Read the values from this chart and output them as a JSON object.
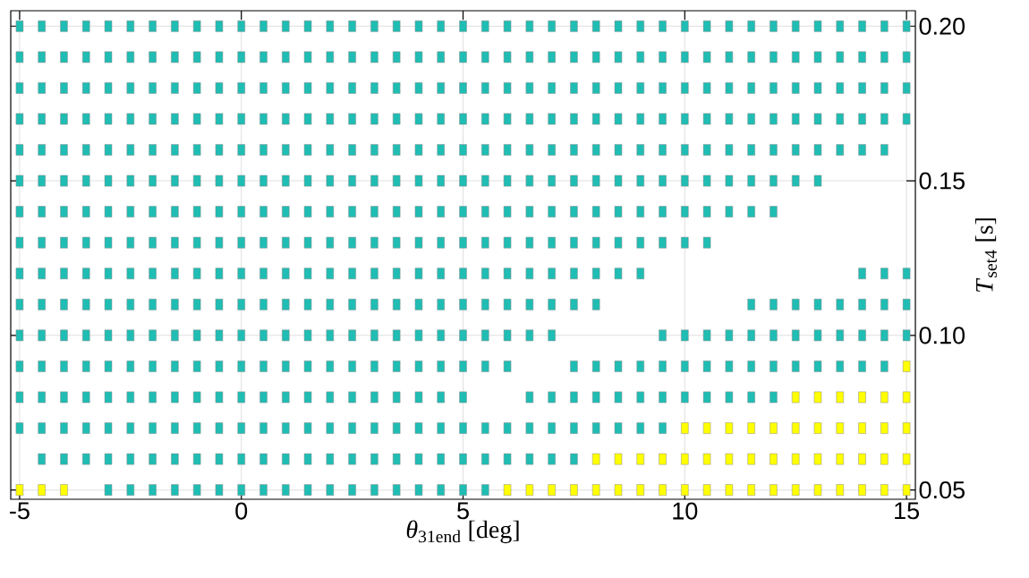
{
  "chart_data": {
    "type": "scatter",
    "xlabel": "*θ*$_{31end}$ [deg]",
    "ylabel": "*T*$_{set4}$ [s]",
    "xlim": [
      -5.2,
      15.2
    ],
    "ylim": [
      0.047,
      0.205
    ],
    "xticks": [
      -5,
      0,
      5,
      10,
      15
    ],
    "yticks": [
      0.05,
      {
        "value": 0.1,
        "label": "0.10"
      },
      0.15,
      {
        "value": 0.2,
        "label": "0.20"
      }
    ],
    "grid": true,
    "marker": "square",
    "series": [
      {
        "color": "#1fbdb3",
        "x": [
          -5,
          -4.5,
          -4,
          -3.5,
          -3,
          -2.5,
          -2,
          -1.5,
          -1,
          -0.5,
          0,
          0.5,
          1,
          1.5,
          2,
          2.5,
          3,
          3.5,
          4,
          4.5,
          5,
          5.5,
          6,
          6.5,
          7,
          7.5,
          8,
          8.5,
          9,
          9.5,
          10,
          10.5,
          11,
          11.5,
          12,
          12.5,
          13,
          13.5,
          14,
          14.5,
          15
        ],
        "values": [
          0.2,
          0.2,
          0.2,
          0.2,
          0.2,
          0.2,
          0.2,
          0.2,
          0.2,
          0.2,
          0.2,
          0.2,
          0.2,
          0.2,
          0.2,
          0.2,
          0.2,
          0.2,
          0.2,
          0.2,
          0.2,
          0.2,
          0.2,
          0.2,
          0.2,
          0.2,
          0.2,
          0.2,
          0.2,
          0.2,
          0.2,
          0.2,
          0.2,
          0.2,
          0.2,
          0.2,
          0.2,
          0.2,
          0.2,
          0.2,
          0.2
        ]
      },
      {
        "color": "#1fbdb3",
        "x": [
          -5,
          -4.5,
          -4,
          -3.5,
          -3,
          -2.5,
          -2,
          -1.5,
          -1,
          -0.5,
          0,
          0.5,
          1,
          1.5,
          2,
          2.5,
          3,
          3.5,
          4,
          4.5,
          5,
          5.5,
          6,
          6.5,
          7,
          7.5,
          8,
          8.5,
          9,
          9.5,
          10,
          10.5,
          11,
          11.5,
          12,
          12.5,
          13,
          13.5,
          14,
          14.5,
          15
        ],
        "values": [
          0.19,
          0.19,
          0.19,
          0.19,
          0.19,
          0.19,
          0.19,
          0.19,
          0.19,
          0.19,
          0.19,
          0.19,
          0.19,
          0.19,
          0.19,
          0.19,
          0.19,
          0.19,
          0.19,
          0.19,
          0.19,
          0.19,
          0.19,
          0.19,
          0.19,
          0.19,
          0.19,
          0.19,
          0.19,
          0.19,
          0.19,
          0.19,
          0.19,
          0.19,
          0.19,
          0.19,
          0.19,
          0.19,
          0.19,
          0.19,
          0.19
        ]
      },
      {
        "color": "#1fbdb3",
        "x": [
          -5,
          -4.5,
          -4,
          -3.5,
          -3,
          -2.5,
          -2,
          -1.5,
          -1,
          -0.5,
          0,
          0.5,
          1,
          1.5,
          2,
          2.5,
          3,
          3.5,
          4,
          4.5,
          5,
          5.5,
          6,
          6.5,
          7,
          7.5,
          8,
          8.5,
          9,
          9.5,
          10,
          10.5,
          11,
          11.5,
          12,
          12.5,
          13,
          13.5,
          14,
          14.5,
          15
        ],
        "values": [
          0.18,
          0.18,
          0.18,
          0.18,
          0.18,
          0.18,
          0.18,
          0.18,
          0.18,
          0.18,
          0.18,
          0.18,
          0.18,
          0.18,
          0.18,
          0.18,
          0.18,
          0.18,
          0.18,
          0.18,
          0.18,
          0.18,
          0.18,
          0.18,
          0.18,
          0.18,
          0.18,
          0.18,
          0.18,
          0.18,
          0.18,
          0.18,
          0.18,
          0.18,
          0.18,
          0.18,
          0.18,
          0.18,
          0.18,
          0.18,
          0.18
        ]
      },
      {
        "color": "#1fbdb3",
        "x": [
          -5,
          -4.5,
          -4,
          -3.5,
          -3,
          -2.5,
          -2,
          -1.5,
          -1,
          -0.5,
          0,
          0.5,
          1,
          1.5,
          2,
          2.5,
          3,
          3.5,
          4,
          4.5,
          5,
          5.5,
          6,
          6.5,
          7,
          7.5,
          8,
          8.5,
          9,
          9.5,
          10,
          10.5,
          11,
          11.5,
          12,
          12.5,
          13,
          13.5,
          14,
          14.5,
          15
        ],
        "values": [
          0.17,
          0.17,
          0.17,
          0.17,
          0.17,
          0.17,
          0.17,
          0.17,
          0.17,
          0.17,
          0.17,
          0.17,
          0.17,
          0.17,
          0.17,
          0.17,
          0.17,
          0.17,
          0.17,
          0.17,
          0.17,
          0.17,
          0.17,
          0.17,
          0.17,
          0.17,
          0.17,
          0.17,
          0.17,
          0.17,
          0.17,
          0.17,
          0.17,
          0.17,
          0.17,
          0.17,
          0.17,
          0.17,
          0.17,
          0.17,
          0.17
        ]
      },
      {
        "color": "#1fbdb3",
        "x": [
          -5,
          -4.5,
          -4,
          -3.5,
          -3,
          -2.5,
          -2,
          -1.5,
          -1,
          -0.5,
          0,
          0.5,
          1,
          1.5,
          2,
          2.5,
          3,
          3.5,
          4,
          4.5,
          5,
          5.5,
          6,
          6.5,
          7,
          7.5,
          8,
          8.5,
          9,
          9.5,
          10,
          10.5,
          11,
          11.5,
          12,
          12.5,
          13,
          13.5,
          14,
          14.5
        ],
        "values": [
          0.16,
          0.16,
          0.16,
          0.16,
          0.16,
          0.16,
          0.16,
          0.16,
          0.16,
          0.16,
          0.16,
          0.16,
          0.16,
          0.16,
          0.16,
          0.16,
          0.16,
          0.16,
          0.16,
          0.16,
          0.16,
          0.16,
          0.16,
          0.16,
          0.16,
          0.16,
          0.16,
          0.16,
          0.16,
          0.16,
          0.16,
          0.16,
          0.16,
          0.16,
          0.16,
          0.16,
          0.16,
          0.16,
          0.16,
          0.16
        ]
      },
      {
        "color": "#1fbdb3",
        "x": [
          -5,
          -4.5,
          -4,
          -3.5,
          -3,
          -2.5,
          -2,
          -1.5,
          -1,
          -0.5,
          0,
          0.5,
          1,
          1.5,
          2,
          2.5,
          3,
          3.5,
          4,
          4.5,
          5,
          5.5,
          6,
          6.5,
          7,
          7.5,
          8,
          8.5,
          9,
          9.5,
          10,
          10.5,
          11,
          11.5,
          12,
          12.5,
          13
        ],
        "values": [
          0.15,
          0.15,
          0.15,
          0.15,
          0.15,
          0.15,
          0.15,
          0.15,
          0.15,
          0.15,
          0.15,
          0.15,
          0.15,
          0.15,
          0.15,
          0.15,
          0.15,
          0.15,
          0.15,
          0.15,
          0.15,
          0.15,
          0.15,
          0.15,
          0.15,
          0.15,
          0.15,
          0.15,
          0.15,
          0.15,
          0.15,
          0.15,
          0.15,
          0.15,
          0.15,
          0.15,
          0.15
        ]
      },
      {
        "color": "#1fbdb3",
        "x": [
          -5,
          -4.5,
          -4,
          -3.5,
          -3,
          -2.5,
          -2,
          -1.5,
          -1,
          -0.5,
          0,
          0.5,
          1,
          1.5,
          2,
          2.5,
          3,
          3.5,
          4,
          4.5,
          5,
          5.5,
          6,
          6.5,
          7,
          7.5,
          8,
          8.5,
          9,
          9.5,
          10,
          10.5,
          11,
          11.5,
          12
        ],
        "values": [
          0.14,
          0.14,
          0.14,
          0.14,
          0.14,
          0.14,
          0.14,
          0.14,
          0.14,
          0.14,
          0.14,
          0.14,
          0.14,
          0.14,
          0.14,
          0.14,
          0.14,
          0.14,
          0.14,
          0.14,
          0.14,
          0.14,
          0.14,
          0.14,
          0.14,
          0.14,
          0.14,
          0.14,
          0.14,
          0.14,
          0.14,
          0.14,
          0.14,
          0.14,
          0.14
        ]
      },
      {
        "color": "#1fbdb3",
        "x": [
          -5,
          -4.5,
          -4,
          -3.5,
          -3,
          -2.5,
          -2,
          -1.5,
          -1,
          -0.5,
          0,
          0.5,
          1,
          1.5,
          2,
          2.5,
          3,
          3.5,
          4,
          4.5,
          5,
          5.5,
          6,
          6.5,
          7,
          7.5,
          8,
          8.5,
          9,
          9.5,
          10,
          10.5
        ],
        "values": [
          0.13,
          0.13,
          0.13,
          0.13,
          0.13,
          0.13,
          0.13,
          0.13,
          0.13,
          0.13,
          0.13,
          0.13,
          0.13,
          0.13,
          0.13,
          0.13,
          0.13,
          0.13,
          0.13,
          0.13,
          0.13,
          0.13,
          0.13,
          0.13,
          0.13,
          0.13,
          0.13,
          0.13,
          0.13,
          0.13,
          0.13,
          0.13
        ]
      },
      {
        "color": "#1fbdb3",
        "x": [
          -5,
          -4.5,
          -4,
          -3.5,
          -3,
          -2.5,
          -2,
          -1.5,
          -1,
          -0.5,
          0,
          0.5,
          1,
          1.5,
          2,
          2.5,
          3,
          3.5,
          4,
          4.5,
          5,
          5.5,
          6,
          6.5,
          7,
          7.5,
          8,
          8.5,
          9,
          14,
          14.5,
          15
        ],
        "values": [
          0.12,
          0.12,
          0.12,
          0.12,
          0.12,
          0.12,
          0.12,
          0.12,
          0.12,
          0.12,
          0.12,
          0.12,
          0.12,
          0.12,
          0.12,
          0.12,
          0.12,
          0.12,
          0.12,
          0.12,
          0.12,
          0.12,
          0.12,
          0.12,
          0.12,
          0.12,
          0.12,
          0.12,
          0.12,
          0.12,
          0.12,
          0.12
        ]
      },
      {
        "color": "#1fbdb3",
        "x": [
          -5,
          -4.5,
          -4,
          -3.5,
          -3,
          -2.5,
          -2,
          -1.5,
          -1,
          -0.5,
          0,
          0.5,
          1,
          1.5,
          2,
          2.5,
          3,
          3.5,
          4,
          4.5,
          5,
          5.5,
          6,
          6.5,
          7,
          7.5,
          8,
          11.5,
          12,
          12.5,
          13,
          13.5,
          14,
          14.5,
          15
        ],
        "values": [
          0.11,
          0.11,
          0.11,
          0.11,
          0.11,
          0.11,
          0.11,
          0.11,
          0.11,
          0.11,
          0.11,
          0.11,
          0.11,
          0.11,
          0.11,
          0.11,
          0.11,
          0.11,
          0.11,
          0.11,
          0.11,
          0.11,
          0.11,
          0.11,
          0.11,
          0.11,
          0.11,
          0.11,
          0.11,
          0.11,
          0.11,
          0.11,
          0.11,
          0.11,
          0.11
        ]
      },
      {
        "color": "#1fbdb3",
        "x": [
          -5,
          -4.5,
          -4,
          -3.5,
          -3,
          -2.5,
          -2,
          -1.5,
          -1,
          -0.5,
          0,
          0.5,
          1,
          1.5,
          2,
          2.5,
          3,
          3.5,
          4,
          4.5,
          5,
          5.5,
          6,
          6.5,
          7,
          9.5,
          10,
          10.5,
          11,
          11.5,
          12,
          12.5,
          13,
          13.5,
          14,
          14.5,
          15
        ],
        "values": [
          0.1,
          0.1,
          0.1,
          0.1,
          0.1,
          0.1,
          0.1,
          0.1,
          0.1,
          0.1,
          0.1,
          0.1,
          0.1,
          0.1,
          0.1,
          0.1,
          0.1,
          0.1,
          0.1,
          0.1,
          0.1,
          0.1,
          0.1,
          0.1,
          0.1,
          0.1,
          0.1,
          0.1,
          0.1,
          0.1,
          0.1,
          0.1,
          0.1,
          0.1,
          0.1,
          0.1,
          0.1
        ]
      },
      {
        "color": "#1fbdb3",
        "x": [
          -5,
          -4.5,
          -4,
          -3.5,
          -3,
          -2.5,
          -2,
          -1.5,
          -1,
          -0.5,
          0,
          0.5,
          1,
          1.5,
          2,
          2.5,
          3,
          3.5,
          4,
          4.5,
          5,
          5.5,
          6,
          7.5,
          8,
          8.5,
          9,
          9.5,
          10,
          10.5,
          11,
          11.5,
          12,
          12.5,
          13,
          13.5,
          14,
          14.5
        ],
        "values": [
          0.09,
          0.09,
          0.09,
          0.09,
          0.09,
          0.09,
          0.09,
          0.09,
          0.09,
          0.09,
          0.09,
          0.09,
          0.09,
          0.09,
          0.09,
          0.09,
          0.09,
          0.09,
          0.09,
          0.09,
          0.09,
          0.09,
          0.09,
          0.09,
          0.09,
          0.09,
          0.09,
          0.09,
          0.09,
          0.09,
          0.09,
          0.09,
          0.09,
          0.09,
          0.09,
          0.09,
          0.09,
          0.09
        ]
      },
      {
        "color": "#1fbdb3",
        "x": [
          -5,
          -4.5,
          -4,
          -3.5,
          -3,
          -2.5,
          -2,
          -1.5,
          -1,
          -0.5,
          0,
          0.5,
          1,
          1.5,
          2,
          2.5,
          3,
          3.5,
          4,
          4.5,
          5,
          6.5,
          7,
          7.5,
          8,
          8.5,
          9,
          9.5,
          10,
          10.5,
          11,
          11.5,
          12
        ],
        "values": [
          0.08,
          0.08,
          0.08,
          0.08,
          0.08,
          0.08,
          0.08,
          0.08,
          0.08,
          0.08,
          0.08,
          0.08,
          0.08,
          0.08,
          0.08,
          0.08,
          0.08,
          0.08,
          0.08,
          0.08,
          0.08,
          0.08,
          0.08,
          0.08,
          0.08,
          0.08,
          0.08,
          0.08,
          0.08,
          0.08,
          0.08,
          0.08,
          0.08
        ]
      },
      {
        "color": "#1fbdb3",
        "x": [
          -5,
          -4.5,
          -4,
          -3.5,
          -3,
          -2.5,
          -2,
          -1.5,
          -1,
          -0.5,
          0,
          0.5,
          1,
          1.5,
          2,
          2.5,
          3,
          3.5,
          4,
          4.5,
          5,
          5.5,
          6,
          6.5,
          7,
          7.5,
          8,
          8.5,
          9,
          9.5
        ],
        "values": [
          0.07,
          0.07,
          0.07,
          0.07,
          0.07,
          0.07,
          0.07,
          0.07,
          0.07,
          0.07,
          0.07,
          0.07,
          0.07,
          0.07,
          0.07,
          0.07,
          0.07,
          0.07,
          0.07,
          0.07,
          0.07,
          0.07,
          0.07,
          0.07,
          0.07,
          0.07,
          0.07,
          0.07,
          0.07,
          0.07
        ]
      },
      {
        "color": "#1fbdb3",
        "x": [
          -4.5,
          -4,
          -3.5,
          -3,
          -2.5,
          -2,
          -1.5,
          -1,
          -0.5,
          0,
          0.5,
          1,
          1.5,
          2,
          2.5,
          3,
          3.5,
          4,
          4.5,
          5,
          5.5,
          6,
          6.5,
          7,
          7.5
        ],
        "values": [
          0.06,
          0.06,
          0.06,
          0.06,
          0.06,
          0.06,
          0.06,
          0.06,
          0.06,
          0.06,
          0.06,
          0.06,
          0.06,
          0.06,
          0.06,
          0.06,
          0.06,
          0.06,
          0.06,
          0.06,
          0.06,
          0.06,
          0.06,
          0.06,
          0.06
        ]
      },
      {
        "color": "#1fbdb3",
        "x": [
          -3,
          -2.5,
          -2,
          -1.5,
          -1,
          -0.5,
          0,
          0.5,
          1,
          1.5,
          2,
          2.5,
          3,
          3.5,
          4,
          4.5,
          5,
          5.5
        ],
        "values": [
          0.05,
          0.05,
          0.05,
          0.05,
          0.05,
          0.05,
          0.05,
          0.05,
          0.05,
          0.05,
          0.05,
          0.05,
          0.05,
          0.05,
          0.05,
          0.05,
          0.05,
          0.05
        ]
      },
      {
        "color": "#ffff00",
        "x": [
          15
        ],
        "values": [
          0.09
        ]
      },
      {
        "color": "#ffff00",
        "x": [
          12.5,
          13,
          13.5,
          14,
          14.5,
          15
        ],
        "values": [
          0.08,
          0.08,
          0.08,
          0.08,
          0.08,
          0.08
        ]
      },
      {
        "color": "#ffff00",
        "x": [
          10,
          10.5,
          11,
          11.5,
          12,
          12.5,
          13,
          13.5,
          14,
          14.5,
          15
        ],
        "values": [
          0.07,
          0.07,
          0.07,
          0.07,
          0.07,
          0.07,
          0.07,
          0.07,
          0.07,
          0.07,
          0.07
        ]
      },
      {
        "color": "#ffff00",
        "x": [
          8,
          8.5,
          9,
          9.5,
          10,
          10.5,
          11,
          11.5,
          12,
          12.5,
          13,
          13.5,
          14,
          14.5,
          15
        ],
        "values": [
          0.06,
          0.06,
          0.06,
          0.06,
          0.06,
          0.06,
          0.06,
          0.06,
          0.06,
          0.06,
          0.06,
          0.06,
          0.06,
          0.06,
          0.06
        ]
      },
      {
        "color": "#ffff00",
        "x": [
          -5,
          -4.5,
          -4,
          6,
          6.5,
          7,
          7.5,
          8,
          8.5,
          9,
          9.5,
          10,
          10.5,
          11,
          11.5,
          12,
          12.5,
          13,
          13.5,
          14,
          14.5,
          15
        ],
        "values": [
          0.05,
          0.05,
          0.05,
          0.05,
          0.05,
          0.05,
          0.05,
          0.05,
          0.05,
          0.05,
          0.05,
          0.05,
          0.05,
          0.05,
          0.05,
          0.05,
          0.05,
          0.05,
          0.05,
          0.05,
          0.05,
          0.05
        ]
      }
    ]
  }
}
